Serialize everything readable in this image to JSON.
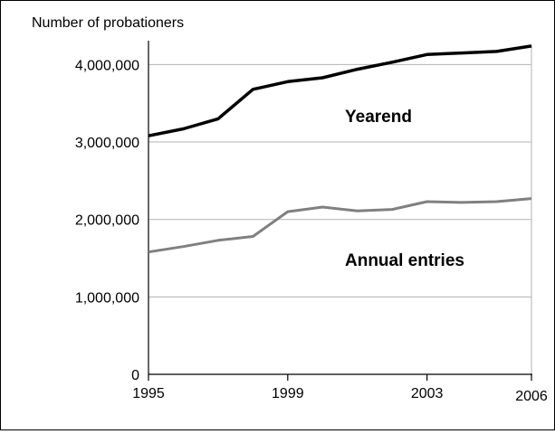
{
  "chart_data": {
    "type": "line",
    "title": "",
    "ylabel": "Number of probationers",
    "xlabel": "",
    "x": [
      1995,
      1996,
      1997,
      1998,
      1999,
      2000,
      2001,
      2002,
      2003,
      2004,
      2005,
      2006
    ],
    "xticks": [
      "1995",
      "1999",
      "2003",
      "2006"
    ],
    "yticks": [
      "0",
      "1,000,000",
      "2,000,000",
      "3,000,000",
      "4,000,000"
    ],
    "ylim": [
      0,
      4250000
    ],
    "xlim": [
      1995,
      2006
    ],
    "grid": true,
    "legend": "inline labels",
    "series": [
      {
        "name": "Yearend",
        "color": "#000000",
        "values": [
          3080000,
          3170000,
          3300000,
          3680000,
          3780000,
          3830000,
          3940000,
          4030000,
          4130000,
          4150000,
          4170000,
          4240000
        ]
      },
      {
        "name": "Annual entries",
        "color": "#808080",
        "values": [
          1580000,
          1650000,
          1730000,
          1780000,
          2100000,
          2160000,
          2110000,
          2130000,
          2230000,
          2220000,
          2230000,
          2270000
        ]
      }
    ]
  }
}
